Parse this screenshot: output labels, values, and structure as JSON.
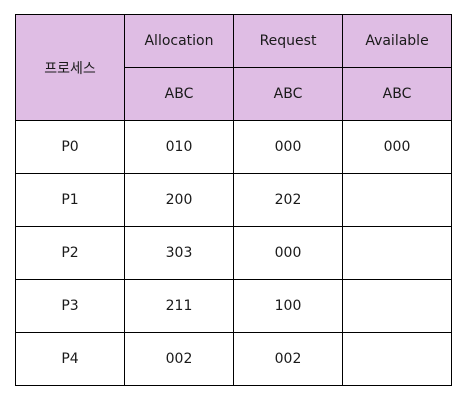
{
  "table": {
    "process_header": "프로세스",
    "group_headers": [
      "Allocation",
      "Request",
      "Available"
    ],
    "sub_headers": [
      "ABC",
      "ABC",
      "ABC"
    ],
    "rows": [
      {
        "process": "P0",
        "allocation": "010",
        "request": "000",
        "available": "000"
      },
      {
        "process": "P1",
        "allocation": "200",
        "request": "202",
        "available": ""
      },
      {
        "process": "P2",
        "allocation": "303",
        "request": "000",
        "available": ""
      },
      {
        "process": "P3",
        "allocation": "211",
        "request": "100",
        "available": ""
      },
      {
        "process": "P4",
        "allocation": "002",
        "request": "002",
        "available": ""
      }
    ]
  },
  "colors": {
    "header_background": "#dfbde4",
    "border": "#000000",
    "text": "#1a1a1a"
  }
}
